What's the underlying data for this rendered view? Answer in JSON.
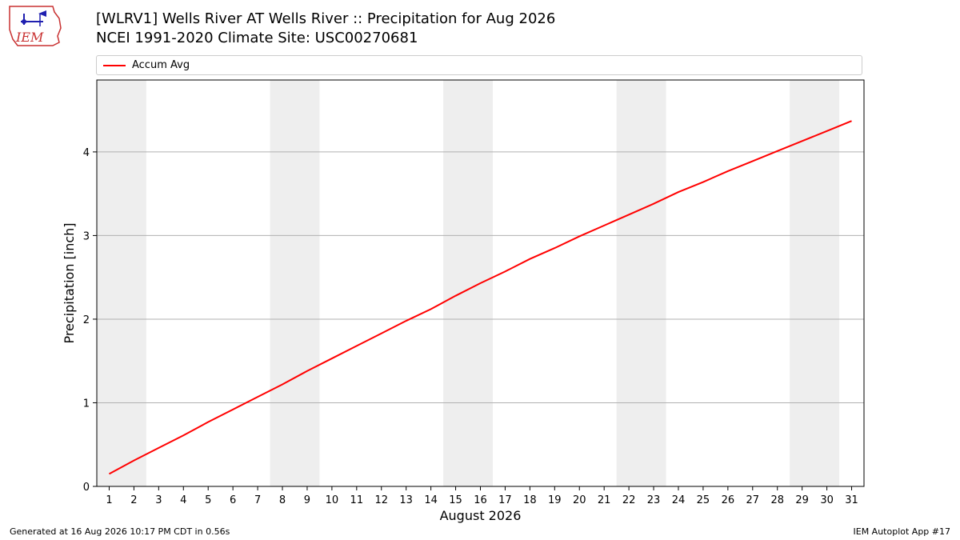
{
  "header": {
    "title_line1": "[WLRV1] Wells River  AT Wells River :: Precipitation for Aug 2026",
    "title_line2": "NCEI 1991-2020 Climate Site: USC00270681"
  },
  "logo": {
    "text": "IEM",
    "icon": "iem-logo-icon"
  },
  "footer": {
    "generated": "Generated at 16 Aug 2026 10:17 PM CDT in 0.56s",
    "app": "IEM Autoplot App #17"
  },
  "colors": {
    "line": "#ff0000",
    "weekend_band": "#eeeeee",
    "grid": "#b0b0b0"
  },
  "chart_data": {
    "type": "line",
    "title": "[WLRV1] Wells River  AT Wells River :: Precipitation for Aug 2026",
    "subtitle": "NCEI 1991-2020 Climate Site: USC00270681",
    "xlabel": "August 2026",
    "ylabel": "Precipitation [inch]",
    "xlim": [
      0.5,
      31.5
    ],
    "ylim": [
      0,
      4.86
    ],
    "yticks": [
      0,
      1,
      2,
      3,
      4
    ],
    "grid": "y",
    "legend_position": "top",
    "x": [
      1,
      2,
      3,
      4,
      5,
      6,
      7,
      8,
      9,
      10,
      11,
      12,
      13,
      14,
      15,
      16,
      17,
      18,
      19,
      20,
      21,
      22,
      23,
      24,
      25,
      26,
      27,
      28,
      29,
      30,
      31
    ],
    "highlight_bands": [
      [
        1,
        2
      ],
      [
        8,
        9
      ],
      [
        15,
        16
      ],
      [
        22,
        23
      ],
      [
        29,
        30
      ]
    ],
    "series": [
      {
        "name": "Accum Avg",
        "values": [
          0.15,
          0.31,
          0.46,
          0.61,
          0.77,
          0.92,
          1.07,
          1.22,
          1.38,
          1.53,
          1.68,
          1.83,
          1.98,
          2.12,
          2.28,
          2.43,
          2.57,
          2.72,
          2.85,
          2.99,
          3.12,
          3.25,
          3.38,
          3.52,
          3.64,
          3.77,
          3.89,
          4.01,
          4.13,
          4.25,
          4.37
        ]
      }
    ]
  }
}
